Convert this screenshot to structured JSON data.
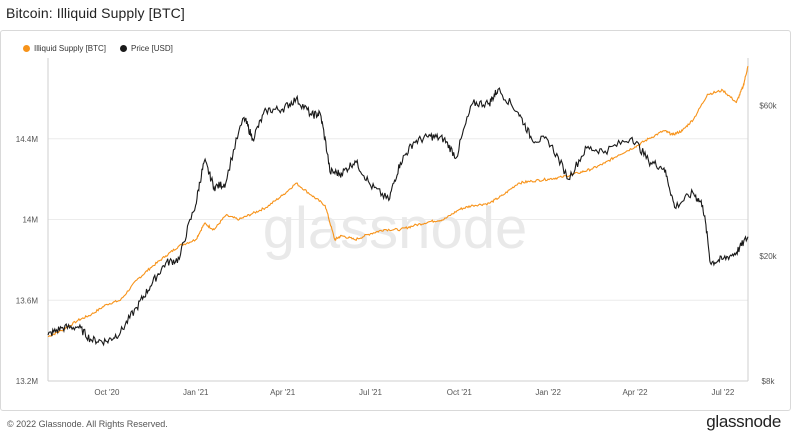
{
  "title": "Bitcoin: Illiquid Supply [BTC]",
  "footer": {
    "copyright": "© 2022 Glassnode. All Rights Reserved.",
    "logo": "glassnode"
  },
  "watermark": "glassnode",
  "colors": {
    "illiquid": "#f7931a",
    "price": "#1a1a1a",
    "grid": "#ececec",
    "axis": "#cfcfcf",
    "watermark": "#e9e9e9"
  },
  "chart_data": {
    "type": "line",
    "x_ticks": [
      "Oct '20",
      "Jan '21",
      "Apr '21",
      "Jul '21",
      "Oct '21",
      "Jan '22",
      "Apr '22",
      "Jul '22"
    ],
    "x_tick_dates": [
      "2020-10-01",
      "2021-01-01",
      "2021-04-01",
      "2021-07-01",
      "2021-10-01",
      "2022-01-01",
      "2022-04-01",
      "2022-07-01"
    ],
    "x_range": [
      "2020-08-01",
      "2022-07-27"
    ],
    "y_left": {
      "ticks": [
        13.2,
        13.6,
        14.0,
        14.4
      ],
      "tick_labels": [
        "13.2M",
        "13.6M",
        "14M",
        "14.4M"
      ],
      "range": [
        13.2,
        14.8
      ]
    },
    "y_right": {
      "scale": "log",
      "ticks": [
        8000,
        20000,
        60000
      ],
      "tick_labels": [
        "$8k",
        "$20k",
        "$60k"
      ],
      "range": [
        8000,
        85000
      ]
    },
    "legend": {
      "position": "top-left"
    },
    "series": [
      {
        "name": "Illiquid Supply [BTC]",
        "axis": "left",
        "unit": "M BTC",
        "points": [
          [
            "2020-08-01",
            13.42
          ],
          [
            "2020-08-15",
            13.45
          ],
          [
            "2020-09-01",
            13.5
          ],
          [
            "2020-09-15",
            13.53
          ],
          [
            "2020-10-01",
            13.58
          ],
          [
            "2020-10-15",
            13.6
          ],
          [
            "2020-11-01",
            13.7
          ],
          [
            "2020-11-15",
            13.76
          ],
          [
            "2020-12-01",
            13.82
          ],
          [
            "2020-12-15",
            13.87
          ],
          [
            "2021-01-01",
            13.9
          ],
          [
            "2021-01-10",
            13.98
          ],
          [
            "2021-01-20",
            13.95
          ],
          [
            "2021-02-01",
            14.02
          ],
          [
            "2021-02-15",
            14.0
          ],
          [
            "2021-03-01",
            14.03
          ],
          [
            "2021-03-15",
            14.06
          ],
          [
            "2021-04-01",
            14.12
          ],
          [
            "2021-04-15",
            14.18
          ],
          [
            "2021-05-01",
            14.12
          ],
          [
            "2021-05-15",
            14.07
          ],
          [
            "2021-05-25",
            13.9
          ],
          [
            "2021-06-01",
            13.92
          ],
          [
            "2021-06-15",
            13.9
          ],
          [
            "2021-07-01",
            13.93
          ],
          [
            "2021-07-15",
            13.95
          ],
          [
            "2021-08-01",
            13.95
          ],
          [
            "2021-08-15",
            13.97
          ],
          [
            "2021-09-01",
            13.99
          ],
          [
            "2021-09-15",
            14.0
          ],
          [
            "2021-10-01",
            14.05
          ],
          [
            "2021-10-15",
            14.07
          ],
          [
            "2021-11-01",
            14.08
          ],
          [
            "2021-11-15",
            14.12
          ],
          [
            "2021-12-01",
            14.18
          ],
          [
            "2021-12-15",
            14.19
          ],
          [
            "2022-01-01",
            14.2
          ],
          [
            "2022-01-15",
            14.21
          ],
          [
            "2022-02-01",
            14.23
          ],
          [
            "2022-02-15",
            14.25
          ],
          [
            "2022-03-01",
            14.28
          ],
          [
            "2022-03-15",
            14.32
          ],
          [
            "2022-04-01",
            14.36
          ],
          [
            "2022-04-15",
            14.4
          ],
          [
            "2022-05-01",
            14.44
          ],
          [
            "2022-05-10",
            14.42
          ],
          [
            "2022-05-20",
            14.44
          ],
          [
            "2022-06-01",
            14.5
          ],
          [
            "2022-06-15",
            14.62
          ],
          [
            "2022-07-01",
            14.64
          ],
          [
            "2022-07-15",
            14.58
          ],
          [
            "2022-07-22",
            14.66
          ],
          [
            "2022-07-27",
            14.76
          ]
        ]
      },
      {
        "name": "Price [USD]",
        "axis": "right",
        "unit": "USD",
        "points": [
          [
            "2020-08-01",
            11200
          ],
          [
            "2020-08-15",
            11800
          ],
          [
            "2020-09-01",
            11900
          ],
          [
            "2020-09-15",
            10800
          ],
          [
            "2020-10-01",
            10700
          ],
          [
            "2020-10-15",
            11400
          ],
          [
            "2020-11-01",
            13700
          ],
          [
            "2020-11-15",
            16000
          ],
          [
            "2020-12-01",
            19000
          ],
          [
            "2020-12-15",
            19500
          ],
          [
            "2021-01-01",
            29000
          ],
          [
            "2021-01-10",
            40000
          ],
          [
            "2021-01-20",
            33000
          ],
          [
            "2021-02-01",
            34000
          ],
          [
            "2021-02-20",
            55000
          ],
          [
            "2021-03-01",
            47000
          ],
          [
            "2021-03-15",
            58000
          ],
          [
            "2021-04-01",
            58500
          ],
          [
            "2021-04-15",
            63000
          ],
          [
            "2021-05-01",
            56000
          ],
          [
            "2021-05-10",
            56500
          ],
          [
            "2021-05-20",
            37000
          ],
          [
            "2021-06-01",
            36500
          ],
          [
            "2021-06-15",
            40000
          ],
          [
            "2021-07-01",
            33500
          ],
          [
            "2021-07-20",
            30000
          ],
          [
            "2021-08-01",
            39500
          ],
          [
            "2021-08-15",
            46000
          ],
          [
            "2021-09-01",
            48000
          ],
          [
            "2021-09-15",
            47000
          ],
          [
            "2021-09-28",
            41000
          ],
          [
            "2021-10-15",
            61000
          ],
          [
            "2021-11-01",
            61000
          ],
          [
            "2021-11-10",
            67500
          ],
          [
            "2021-12-01",
            57000
          ],
          [
            "2021-12-15",
            47000
          ],
          [
            "2022-01-01",
            46500
          ],
          [
            "2022-01-22",
            35000
          ],
          [
            "2022-02-10",
            44000
          ],
          [
            "2022-03-01",
            43000
          ],
          [
            "2022-03-29",
            47500
          ],
          [
            "2022-04-15",
            40000
          ],
          [
            "2022-05-01",
            38000
          ],
          [
            "2022-05-12",
            28500
          ],
          [
            "2022-05-31",
            31700
          ],
          [
            "2022-06-10",
            29000
          ],
          [
            "2022-06-18",
            19000
          ],
          [
            "2022-07-01",
            19500
          ],
          [
            "2022-07-15",
            20500
          ],
          [
            "2022-07-27",
            23000
          ]
        ]
      }
    ]
  }
}
